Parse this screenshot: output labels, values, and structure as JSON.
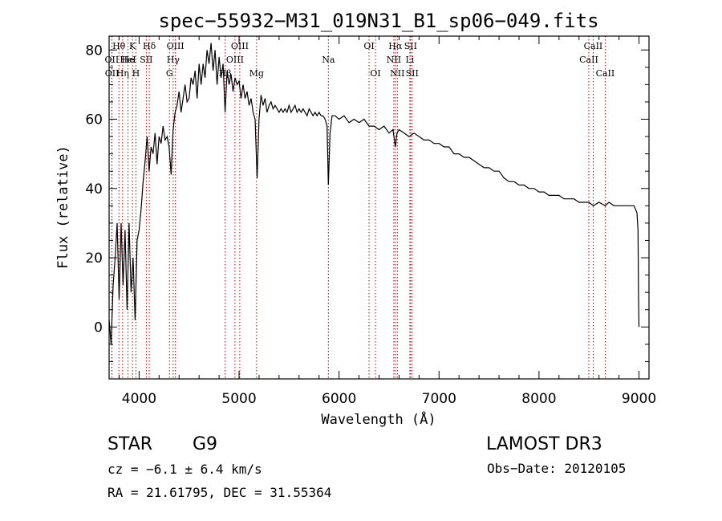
{
  "colors": {
    "axis": "#000000",
    "spectrum": "#000000",
    "line_marker": "#c00000",
    "background": "#ffffff"
  },
  "info": {
    "class_label": "STAR",
    "subclass": "G9",
    "survey": "LAMOST DR3",
    "cz": "cz = −6.1 ± 6.4 km/s",
    "obs_date": "Obs−Date: 20120105",
    "coords": "RA =  21.61795, DEC =  31.55364"
  },
  "chart_data": {
    "type": "line",
    "title": "spec−55932−M31_019N31_B1_sp06−049.fits",
    "xlabel": "Wavelength (Å)",
    "ylabel": "Flux (relative)",
    "xlim": [
      3700,
      9100
    ],
    "ylim": [
      -15,
      84
    ],
    "x_ticks": [
      4000,
      5000,
      6000,
      7000,
      8000,
      9000
    ],
    "y_ticks": [
      0,
      20,
      40,
      60,
      80
    ],
    "spectrum": [
      [
        3700,
        2
      ],
      [
        3720,
        -5
      ],
      [
        3740,
        12
      ],
      [
        3760,
        20
      ],
      [
        3780,
        30
      ],
      [
        3800,
        8
      ],
      [
        3820,
        30
      ],
      [
        3840,
        12
      ],
      [
        3860,
        28
      ],
      [
        3880,
        5
      ],
      [
        3900,
        30
      ],
      [
        3920,
        10
      ],
      [
        3940,
        20
      ],
      [
        3960,
        2
      ],
      [
        3980,
        25
      ],
      [
        4000,
        28
      ],
      [
        4020,
        34
      ],
      [
        4040,
        42
      ],
      [
        4060,
        48
      ],
      [
        4080,
        55
      ],
      [
        4100,
        45
      ],
      [
        4120,
        52
      ],
      [
        4140,
        50
      ],
      [
        4160,
        56
      ],
      [
        4180,
        47
      ],
      [
        4200,
        55
      ],
      [
        4220,
        53
      ],
      [
        4240,
        58
      ],
      [
        4260,
        54
      ],
      [
        4280,
        55
      ],
      [
        4300,
        52
      ],
      [
        4320,
        44
      ],
      [
        4340,
        57
      ],
      [
        4360,
        62
      ],
      [
        4380,
        64
      ],
      [
        4400,
        68
      ],
      [
        4420,
        62
      ],
      [
        4440,
        66
      ],
      [
        4460,
        70
      ],
      [
        4480,
        65
      ],
      [
        4500,
        66
      ],
      [
        4520,
        72
      ],
      [
        4540,
        70
      ],
      [
        4560,
        74
      ],
      [
        4580,
        66
      ],
      [
        4600,
        76
      ],
      [
        4620,
        70
      ],
      [
        4640,
        76
      ],
      [
        4660,
        72
      ],
      [
        4680,
        80
      ],
      [
        4700,
        76
      ],
      [
        4720,
        82
      ],
      [
        4740,
        74
      ],
      [
        4760,
        80
      ],
      [
        4780,
        70
      ],
      [
        4800,
        78
      ],
      [
        4820,
        72
      ],
      [
        4840,
        76
      ],
      [
        4860,
        62
      ],
      [
        4880,
        74
      ],
      [
        4900,
        70
      ],
      [
        4920,
        73
      ],
      [
        4940,
        68
      ],
      [
        4960,
        72
      ],
      [
        4980,
        70
      ],
      [
        5000,
        71
      ],
      [
        5020,
        66
      ],
      [
        5040,
        70
      ],
      [
        5060,
        66
      ],
      [
        5080,
        68
      ],
      [
        5100,
        64
      ],
      [
        5120,
        66
      ],
      [
        5140,
        62
      ],
      [
        5160,
        60
      ],
      [
        5180,
        43
      ],
      [
        5200,
        60
      ],
      [
        5220,
        67
      ],
      [
        5240,
        64
      ],
      [
        5260,
        66
      ],
      [
        5280,
        62
      ],
      [
        5300,
        64
      ],
      [
        5320,
        65
      ],
      [
        5340,
        63
      ],
      [
        5360,
        64
      ],
      [
        5380,
        63
      ],
      [
        5400,
        62
      ],
      [
        5420,
        63
      ],
      [
        5440,
        62
      ],
      [
        5460,
        63
      ],
      [
        5480,
        62
      ],
      [
        5500,
        64
      ],
      [
        5520,
        62
      ],
      [
        5540,
        63
      ],
      [
        5560,
        64
      ],
      [
        5580,
        62
      ],
      [
        5600,
        63
      ],
      [
        5620,
        62
      ],
      [
        5640,
        63
      ],
      [
        5660,
        62
      ],
      [
        5680,
        61
      ],
      [
        5700,
        63
      ],
      [
        5720,
        62
      ],
      [
        5740,
        61
      ],
      [
        5760,
        62
      ],
      [
        5780,
        61
      ],
      [
        5800,
        62
      ],
      [
        5820,
        61
      ],
      [
        5840,
        61
      ],
      [
        5860,
        60
      ],
      [
        5880,
        58
      ],
      [
        5893,
        41
      ],
      [
        5910,
        56
      ],
      [
        5930,
        61
      ],
      [
        5960,
        61
      ],
      [
        6000,
        60
      ],
      [
        6050,
        61
      ],
      [
        6100,
        59
      ],
      [
        6150,
        60
      ],
      [
        6200,
        59
      ],
      [
        6250,
        60
      ],
      [
        6300,
        58
      ],
      [
        6350,
        58
      ],
      [
        6400,
        57
      ],
      [
        6450,
        58
      ],
      [
        6500,
        56
      ],
      [
        6540,
        57
      ],
      [
        6563,
        52
      ],
      [
        6580,
        56
      ],
      [
        6600,
        57
      ],
      [
        6650,
        56
      ],
      [
        6700,
        55
      ],
      [
        6750,
        56
      ],
      [
        6800,
        55
      ],
      [
        6850,
        54
      ],
      [
        6900,
        54
      ],
      [
        6950,
        53
      ],
      [
        7000,
        53
      ],
      [
        7050,
        52
      ],
      [
        7100,
        52
      ],
      [
        7150,
        50
      ],
      [
        7200,
        50
      ],
      [
        7250,
        49
      ],
      [
        7300,
        49
      ],
      [
        7350,
        48
      ],
      [
        7400,
        47
      ],
      [
        7450,
        46
      ],
      [
        7500,
        46
      ],
      [
        7550,
        45
      ],
      [
        7600,
        45
      ],
      [
        7650,
        43
      ],
      [
        7700,
        42
      ],
      [
        7750,
        42
      ],
      [
        7800,
        41
      ],
      [
        7850,
        41
      ],
      [
        7900,
        40
      ],
      [
        7950,
        40
      ],
      [
        8000,
        39
      ],
      [
        8050,
        39
      ],
      [
        8100,
        38
      ],
      [
        8150,
        38
      ],
      [
        8200,
        38
      ],
      [
        8250,
        37
      ],
      [
        8300,
        37
      ],
      [
        8350,
        37
      ],
      [
        8400,
        36
      ],
      [
        8450,
        36
      ],
      [
        8500,
        36
      ],
      [
        8542,
        35
      ],
      [
        8600,
        36
      ],
      [
        8662,
        35
      ],
      [
        8700,
        36
      ],
      [
        8750,
        35
      ],
      [
        8800,
        35
      ],
      [
        8850,
        35
      ],
      [
        8900,
        35
      ],
      [
        8950,
        35
      ],
      [
        8980,
        33
      ],
      [
        8990,
        28
      ],
      [
        8995,
        10
      ],
      [
        9000,
        0
      ]
    ],
    "lines": [
      {
        "label": "Hθ",
        "wavelength": 3798,
        "row": 1
      },
      {
        "label": "OII",
        "wavelength": 3727,
        "row": 2
      },
      {
        "label": "OII",
        "wavelength": 3729,
        "row": 3
      },
      {
        "label": "He",
        "wavelength": 3889,
        "row": 2
      },
      {
        "label": "Hη",
        "wavelength": 3835,
        "row": 3
      },
      {
        "label": "K",
        "wavelength": 3934,
        "row": 1
      },
      {
        "label": "HeI",
        "wavelength": 3889,
        "row": 2
      },
      {
        "label": "H",
        "wavelength": 3968,
        "row": 3
      },
      {
        "label": "Hδ",
        "wavelength": 4102,
        "row": 1
      },
      {
        "label": "SII",
        "wavelength": 4072,
        "row": 2
      },
      {
        "label": "OIII",
        "wavelength": 4363,
        "row": 1
      },
      {
        "label": "Hγ",
        "wavelength": 4341,
        "row": 2
      },
      {
        "label": "G",
        "wavelength": 4304,
        "row": 3
      },
      {
        "label": "OIII",
        "wavelength": 5007,
        "row": 1
      },
      {
        "label": "OIII",
        "wavelength": 4959,
        "row": 2
      },
      {
        "label": "Hβ",
        "wavelength": 4861,
        "row": 3
      },
      {
        "label": "Mg",
        "wavelength": 5175,
        "row": 3
      },
      {
        "label": "Na",
        "wavelength": 5893,
        "row": 2
      },
      {
        "label": "OI",
        "wavelength": 6300,
        "row": 1
      },
      {
        "label": "OI",
        "wavelength": 6364,
        "row": 3
      },
      {
        "label": "Hα",
        "wavelength": 6563,
        "row": 1
      },
      {
        "label": "SII",
        "wavelength": 6716,
        "row": 1
      },
      {
        "label": "NII",
        "wavelength": 6548,
        "row": 2
      },
      {
        "label": "Li",
        "wavelength": 6708,
        "row": 2
      },
      {
        "label": "NII",
        "wavelength": 6583,
        "row": 3
      },
      {
        "label": "SII",
        "wavelength": 6731,
        "row": 3
      },
      {
        "label": "CaII",
        "wavelength": 8542,
        "row": 1
      },
      {
        "label": "CaII",
        "wavelength": 8498,
        "row": 2
      },
      {
        "label": "CaII",
        "wavelength": 8662,
        "row": 3
      }
    ]
  }
}
